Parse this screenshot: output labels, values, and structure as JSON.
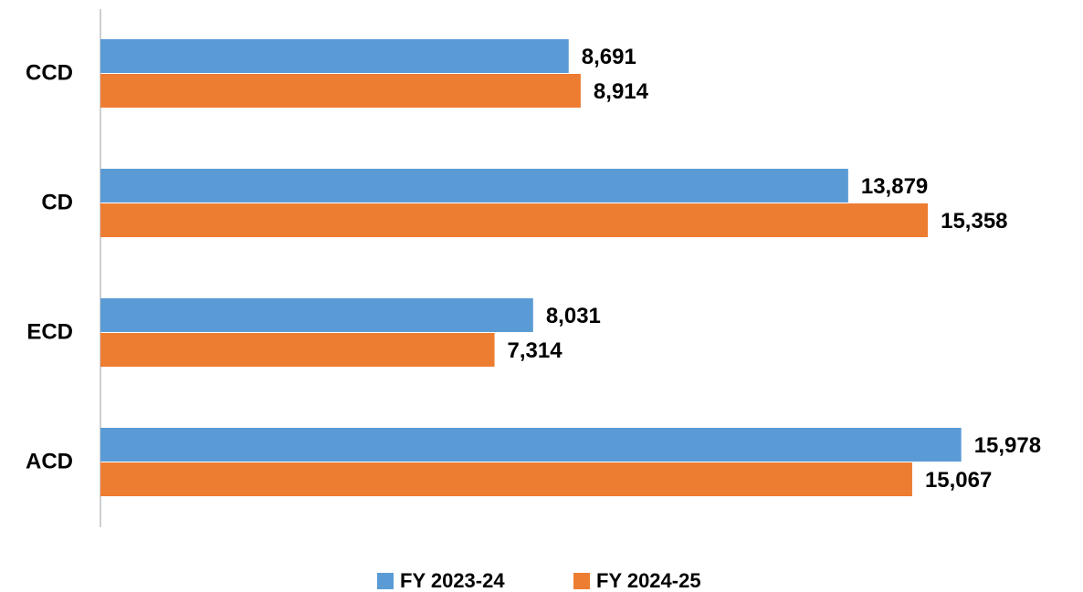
{
  "chart_data": {
    "type": "bar",
    "orientation": "horizontal",
    "categories": [
      "CCD",
      "CD",
      "ECD",
      "ACD"
    ],
    "series": [
      {
        "name": "FY 2023-24",
        "color": "#5b9bd5",
        "values": [
          8691,
          13879,
          8031,
          15978
        ],
        "value_labels": [
          "8,691",
          "13,879",
          "8,031",
          "15,978"
        ]
      },
      {
        "name": "FY 2024-25",
        "color": "#ed7d31",
        "values": [
          8914,
          15358,
          7314,
          15067
        ],
        "value_labels": [
          "8,914",
          "15,358",
          "7,314",
          "15,067"
        ]
      }
    ],
    "xlim": [
      0,
      18000
    ],
    "legend": "bottom"
  }
}
